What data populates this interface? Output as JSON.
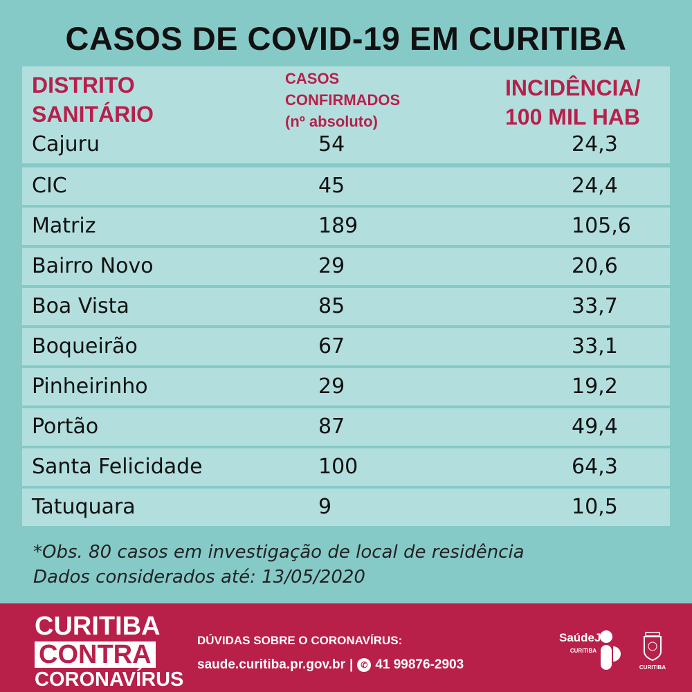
{
  "title": "CASOS DE COVID-19 EM CURITIBA",
  "headers": {
    "district": [
      "DISTRITO",
      "SANITÁRIO"
    ],
    "cases": [
      "CASOS",
      "CONFIRMADOS",
      "(nº absoluto)"
    ],
    "incidence": [
      "INCIDÊNCIA/",
      "100 MIL HAB"
    ]
  },
  "rows": [
    {
      "district": "Cajuru",
      "cases": "54",
      "incidence": "24,3"
    },
    {
      "district": "CIC",
      "cases": "45",
      "incidence": "24,4"
    },
    {
      "district": "Matriz",
      "cases": "189",
      "incidence": "105,6"
    },
    {
      "district": "Bairro Novo",
      "cases": "29",
      "incidence": "20,6"
    },
    {
      "district": "Boa Vista",
      "cases": "85",
      "incidence": "33,7"
    },
    {
      "district": "Boqueirão",
      "cases": "67",
      "incidence": "33,1"
    },
    {
      "district": "Pinheirinho",
      "cases": "29",
      "incidence": "19,2"
    },
    {
      "district": "Portão",
      "cases": "87",
      "incidence": "49,4"
    },
    {
      "district": "Santa Felicidade",
      "cases": "100",
      "incidence": "64,3"
    },
    {
      "district": "Tatuquara",
      "cases": "9",
      "incidence": "10,5"
    }
  ],
  "notes": [
    "*Obs. 80 casos em investigação de local de residência",
    "Dados considerados até: 13/05/2020"
  ],
  "footer": {
    "logo": [
      "CURITIBA",
      "CONTRA",
      "CORONAVÍRUS"
    ],
    "question": "DÚVIDAS SOBRE O CORONAVÍRUS:",
    "site": "saude.curitiba.pr.gov.br",
    "separator": "|",
    "phone": "41 99876-2903",
    "saude_logo": "SaúdeJá",
    "saude_sub": "CURITIBA",
    "city_logo": "CURITIBA"
  },
  "colors": {
    "bg": "#86cac8",
    "row": "#b2dfde",
    "accent": "#b82049"
  }
}
